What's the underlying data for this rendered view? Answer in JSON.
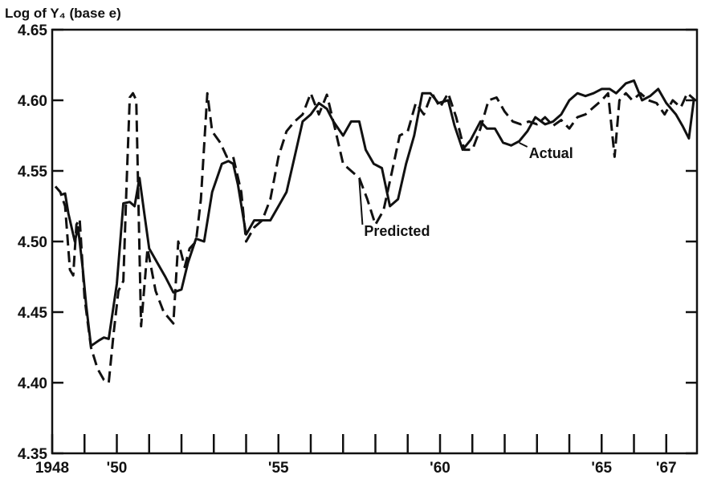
{
  "chart_data": {
    "type": "line",
    "title": "",
    "ylabel": "Log of Y₄ (base e)",
    "xlabel": "",
    "xlim": [
      1948.0,
      1967.95
    ],
    "ylim": [
      4.35,
      4.65
    ],
    "yticks": [
      4.35,
      4.4,
      4.45,
      4.5,
      4.55,
      4.6,
      4.65
    ],
    "ytick_labels": [
      "4.35",
      "4.40",
      "4.45",
      "4.50",
      "4.55",
      "4.60",
      "4.65"
    ],
    "xtick_labels": [
      {
        "x": 1948,
        "label": "1948"
      },
      {
        "x": 1950,
        "label": "'50"
      },
      {
        "x": 1955,
        "label": "'55"
      },
      {
        "x": 1960,
        "label": "'60"
      },
      {
        "x": 1965,
        "label": "'65"
      },
      {
        "x": 1967,
        "label": "'67"
      }
    ],
    "grid": false,
    "annotations": [
      {
        "text": "Actual",
        "series": "Actual"
      },
      {
        "text": "Predicted",
        "series": "Predicted"
      }
    ],
    "series": [
      {
        "name": "Actual",
        "style": "solid",
        "x": [
          1948.25,
          1948.4,
          1948.5,
          1948.7,
          1948.8,
          1948.95,
          1949.05,
          1949.2,
          1949.45,
          1949.6,
          1949.75,
          1950.0,
          1950.2,
          1950.4,
          1950.55,
          1950.7,
          1950.85,
          1951.0,
          1951.25,
          1951.5,
          1951.75,
          1952.0,
          1952.2,
          1952.45,
          1952.7,
          1952.95,
          1953.25,
          1953.45,
          1953.6,
          1953.75,
          1954.0,
          1954.25,
          1954.5,
          1954.75,
          1955.0,
          1955.25,
          1955.5,
          1955.75,
          1956.0,
          1956.25,
          1956.5,
          1956.7,
          1957.0,
          1957.25,
          1957.5,
          1957.7,
          1957.95,
          1958.2,
          1958.45,
          1958.7,
          1958.95,
          1959.2,
          1959.45,
          1959.7,
          1959.95,
          1960.25,
          1960.45,
          1960.7,
          1960.95,
          1961.25,
          1961.45,
          1961.7,
          1961.95,
          1962.2,
          1962.45,
          1962.7,
          1962.95,
          1963.25,
          1963.5,
          1963.75,
          1964.0,
          1964.25,
          1964.5,
          1964.75,
          1965.0,
          1965.25,
          1965.45,
          1965.75,
          1966.0,
          1966.25,
          1966.5,
          1966.75,
          1967.0,
          1967.3,
          1967.5,
          1967.7,
          1967.85
        ],
        "y": [
          4.533,
          4.534,
          4.52,
          4.5,
          4.51,
          4.48,
          4.455,
          4.426,
          4.43,
          4.432,
          4.431,
          4.47,
          4.527,
          4.528,
          4.525,
          4.545,
          4.52,
          4.495,
          4.485,
          4.475,
          4.464,
          4.466,
          4.485,
          4.502,
          4.5,
          4.535,
          4.555,
          4.557,
          4.555,
          4.54,
          4.505,
          4.515,
          4.515,
          4.515,
          4.525,
          4.535,
          4.56,
          4.585,
          4.59,
          4.598,
          4.594,
          4.585,
          4.575,
          4.585,
          4.585,
          4.565,
          4.555,
          4.552,
          4.525,
          4.53,
          4.555,
          4.575,
          4.605,
          4.605,
          4.598,
          4.6,
          4.582,
          4.565,
          4.572,
          4.585,
          4.58,
          4.58,
          4.57,
          4.568,
          4.571,
          4.578,
          4.588,
          4.583,
          4.585,
          4.59,
          4.6,
          4.605,
          4.603,
          4.605,
          4.608,
          4.608,
          4.605,
          4.612,
          4.614,
          4.6,
          4.603,
          4.608,
          4.598,
          4.59,
          4.582,
          4.573,
          4.6
        ]
      },
      {
        "name": "Predicted",
        "style": "dashed",
        "x": [
          1948.1,
          1948.25,
          1948.4,
          1948.55,
          1948.65,
          1948.75,
          1948.85,
          1949.0,
          1949.2,
          1949.4,
          1949.6,
          1949.75,
          1949.9,
          1950.05,
          1950.2,
          1950.3,
          1950.4,
          1950.5,
          1950.6,
          1950.75,
          1950.95,
          1951.2,
          1951.45,
          1951.75,
          1951.9,
          1952.1,
          1952.25,
          1952.45,
          1952.6,
          1952.8,
          1952.95,
          1953.2,
          1953.4,
          1953.6,
          1953.85,
          1954.0,
          1954.25,
          1954.5,
          1954.75,
          1955.0,
          1955.25,
          1955.5,
          1955.75,
          1956.0,
          1956.25,
          1956.5,
          1956.75,
          1957.0,
          1957.25,
          1957.5,
          1957.75,
          1958.0,
          1958.25,
          1958.5,
          1958.75,
          1959.0,
          1959.25,
          1959.5,
          1959.75,
          1960.0,
          1960.25,
          1960.5,
          1960.75,
          1961.0,
          1961.25,
          1961.5,
          1961.75,
          1962.0,
          1962.25,
          1962.5,
          1962.75,
          1963.0,
          1963.25,
          1963.5,
          1963.75,
          1964.0,
          1964.25,
          1964.5,
          1964.75,
          1965.0,
          1965.2,
          1965.4,
          1965.55,
          1965.75,
          1965.95,
          1966.2,
          1966.45,
          1966.7,
          1966.95,
          1967.2,
          1967.45,
          1967.65,
          1967.9
        ],
        "y": [
          4.539,
          4.535,
          4.525,
          4.48,
          4.476,
          4.512,
          4.516,
          4.46,
          4.425,
          4.41,
          4.402,
          4.4,
          4.435,
          4.465,
          4.472,
          4.54,
          4.602,
          4.605,
          4.6,
          4.44,
          4.495,
          4.465,
          4.45,
          4.442,
          4.5,
          4.482,
          4.495,
          4.5,
          4.53,
          4.605,
          4.578,
          4.57,
          4.56,
          4.56,
          4.535,
          4.5,
          4.51,
          4.515,
          4.53,
          4.56,
          4.578,
          4.585,
          4.59,
          4.605,
          4.59,
          4.604,
          4.58,
          4.555,
          4.55,
          4.545,
          4.53,
          4.512,
          4.522,
          4.548,
          4.575,
          4.578,
          4.598,
          4.59,
          4.605,
          4.595,
          4.605,
          4.588,
          4.565,
          4.565,
          4.58,
          4.6,
          4.602,
          4.592,
          4.585,
          4.583,
          4.585,
          4.583,
          4.588,
          4.582,
          4.586,
          4.58,
          4.588,
          4.59,
          4.595,
          4.6,
          4.605,
          4.56,
          4.6,
          4.605,
          4.6,
          4.605,
          4.6,
          4.598,
          4.59,
          4.6,
          4.595,
          4.605,
          4.6
        ]
      }
    ]
  }
}
